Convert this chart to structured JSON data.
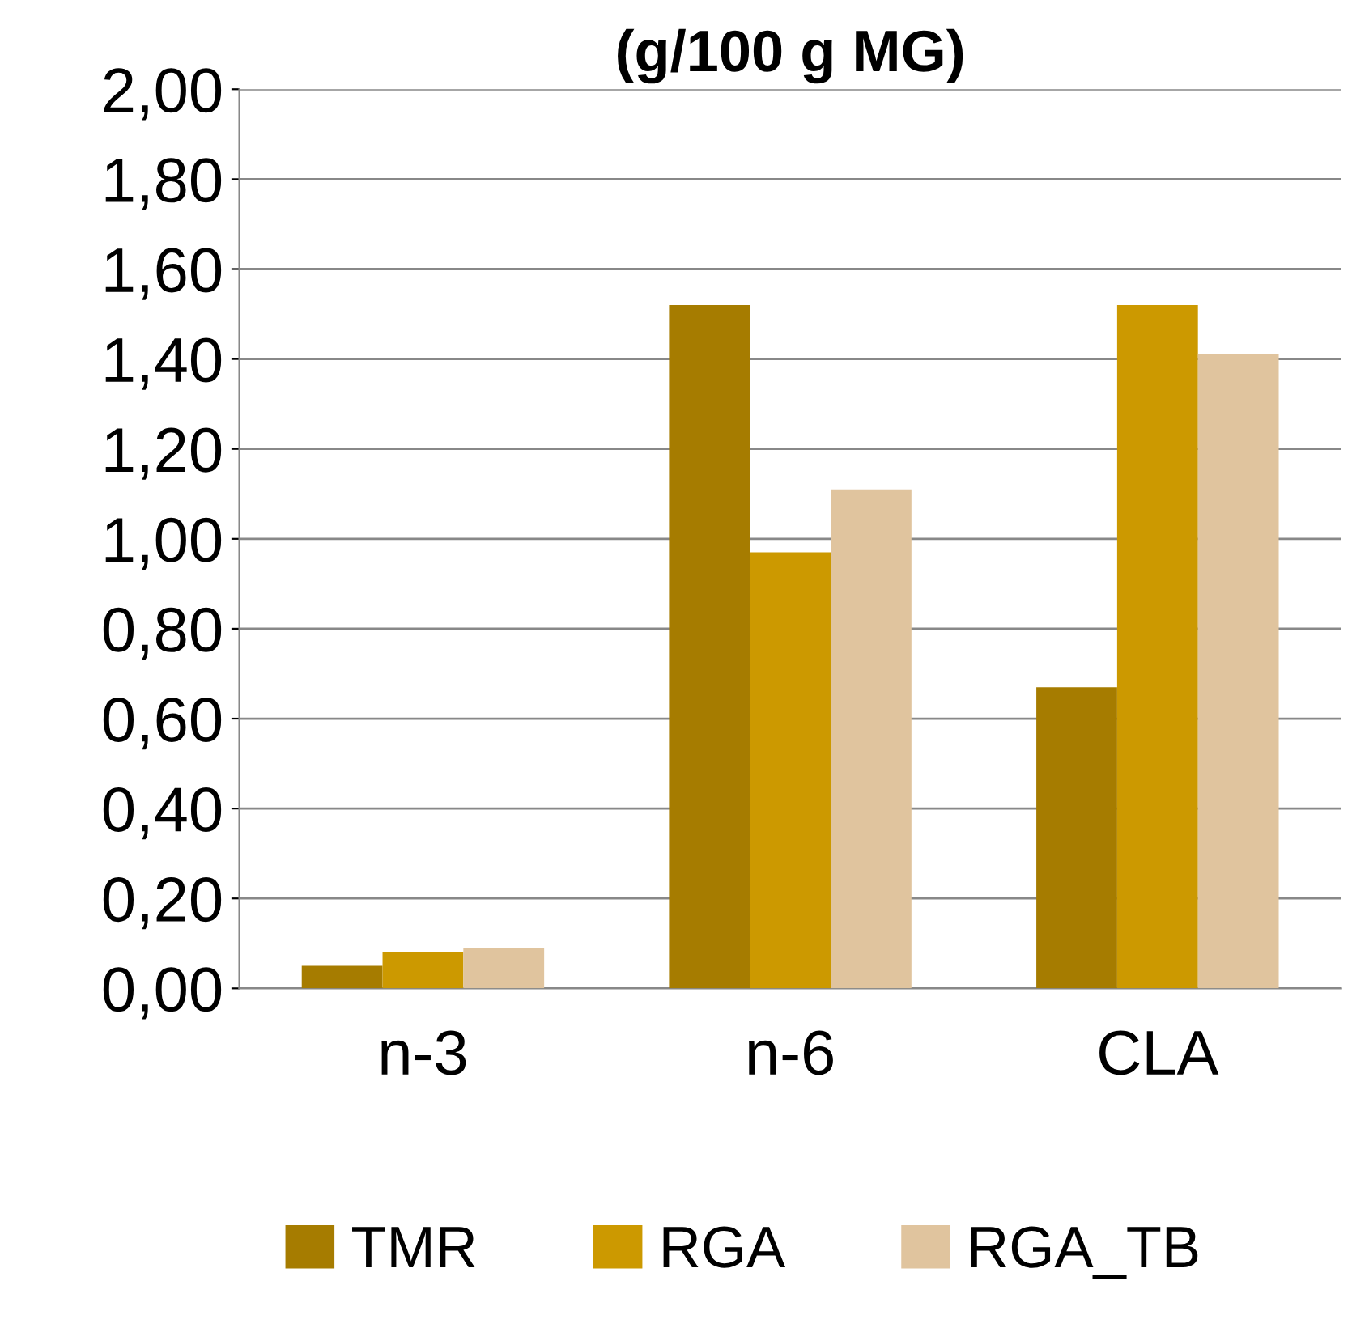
{
  "chart_data": {
    "type": "bar",
    "title": "(g/100 g MG)",
    "categories": [
      "n-3",
      "n-6",
      "CLA"
    ],
    "series": [
      {
        "name": "TMR",
        "color": "#a67c00",
        "values": [
          0.05,
          1.52,
          0.67
        ]
      },
      {
        "name": "RGA",
        "color": "#cc9900",
        "values": [
          0.08,
          0.97,
          1.52
        ]
      },
      {
        "name": "RGA_TB",
        "color": "#e0c49e",
        "values": [
          0.09,
          1.11,
          1.41
        ]
      }
    ],
    "ylim": [
      0,
      2
    ],
    "yticks": [
      {
        "value": 0,
        "label": "0,00"
      },
      {
        "value": 0.2,
        "label": "0,20"
      },
      {
        "value": 0.4,
        "label": "0,40"
      },
      {
        "value": 0.6,
        "label": "0,60"
      },
      {
        "value": 0.8,
        "label": "0,80"
      },
      {
        "value": 1.0,
        "label": "1,00"
      },
      {
        "value": 1.2,
        "label": "1,20"
      },
      {
        "value": 1.4,
        "label": "1,40"
      },
      {
        "value": 1.6,
        "label": "1,60"
      },
      {
        "value": 1.8,
        "label": "1,80"
      },
      {
        "value": 2.0,
        "label": "2,00"
      }
    ],
    "grid": "y",
    "legend": "bottom"
  }
}
